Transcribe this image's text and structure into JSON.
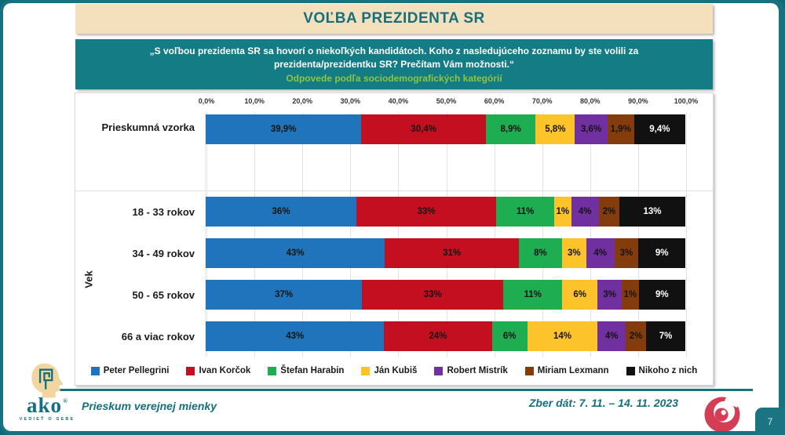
{
  "header": {
    "title": "VOĽBA PREZIDENTA SR",
    "question": "„S voľbou prezidenta SR sa hovorí o niekoľkých kandidátoch. Koho z nasledujúceho zoznamu by ste volili za prezidenta/prezidentku SR? Prečítam Vám možnosti.“",
    "subtext": "Odpovede podľa sociodemografických kategórií"
  },
  "chart_data": {
    "type": "bar",
    "orientation": "horizontal",
    "stacked": true,
    "axis_ticks": [
      "0,0%",
      "10,0%",
      "20,0%",
      "30,0%",
      "40,0%",
      "50,0%",
      "60,0%",
      "70,0%",
      "80,0%",
      "90,0%",
      "100,0%"
    ],
    "xlim": [
      0,
      100
    ],
    "grid": true,
    "legend_position": "bottom",
    "group_label": "Vek",
    "categories": [
      "Prieskumná vzorka",
      "18 - 33 rokov",
      "34 - 49 rokov",
      "50 - 65 rokov",
      "66 a viac rokov"
    ],
    "series": [
      {
        "name": "Peter Pellegrini",
        "color": "#1F74BB",
        "values": [
          39.9,
          36,
          43,
          37,
          43
        ],
        "labels": [
          "39,9%",
          "36%",
          "43%",
          "37%",
          "43%"
        ]
      },
      {
        "name": "Ivan Korčok",
        "color": "#C40F20",
        "values": [
          30.4,
          33,
          31,
          33,
          24
        ],
        "labels": [
          "30,4%",
          "33%",
          "31%",
          "33%",
          "24%"
        ]
      },
      {
        "name": "Štefan Harabin",
        "color": "#1FAD52",
        "values": [
          8.9,
          11,
          8,
          11,
          6
        ],
        "labels": [
          "8,9%",
          "11%",
          "8%",
          "11%",
          "6%"
        ]
      },
      {
        "name": "Ján Kubiš",
        "color": "#FDC32B",
        "values": [
          5.8,
          1,
          3,
          6,
          14
        ],
        "labels": [
          "5,8%",
          "1%",
          "3%",
          "6%",
          "14%"
        ]
      },
      {
        "name": "Robert Mistrík",
        "color": "#7030A0",
        "values": [
          3.6,
          4,
          4,
          3,
          4
        ],
        "labels": [
          "3,6%",
          "4%",
          "4%",
          "3%",
          "4%"
        ]
      },
      {
        "name": "Miriam Lexmann",
        "color": "#843C0C",
        "values": [
          1.9,
          2,
          3,
          1,
          2
        ],
        "labels": [
          "1,9%",
          "2%",
          "3%",
          "1%",
          "2%"
        ]
      },
      {
        "name": "Nikoho z nich",
        "color": "#111111",
        "values": [
          9.4,
          13,
          9,
          9,
          7
        ],
        "labels": [
          "9,4%",
          "13%",
          "9%",
          "9%",
          "7%"
        ],
        "label_color": "#ffffff"
      }
    ]
  },
  "footer": {
    "survey_label": "Prieskum verejnej mienky",
    "collection_dates": "Zber dát: 7. 11. – 14. 11. 2023",
    "page_number": "7",
    "logo": {
      "text": "ako",
      "tagline": "VEDIEŤ O SEBE"
    }
  }
}
